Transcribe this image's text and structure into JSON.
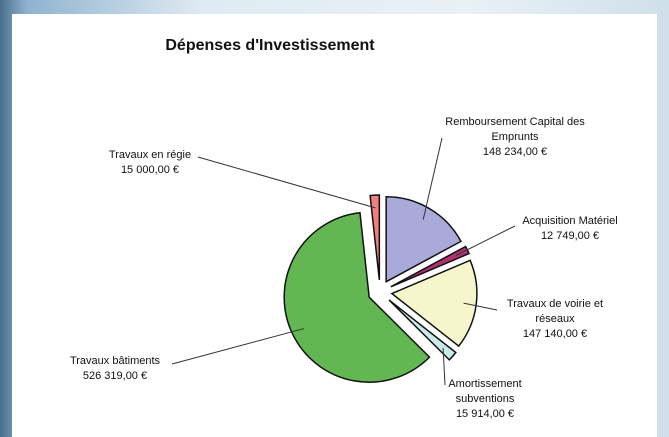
{
  "chart_data": {
    "type": "pie",
    "title": "Dépenses d'Investissement",
    "categories": [
      "Remboursement Capital des Emprunts",
      "Acquisition Matériel",
      "Travaux de voirie et réseaux",
      "Amortissement subventions",
      "Travaux bâtiments",
      "Travaux en régie"
    ],
    "values": [
      148234,
      12749,
      147140,
      15914,
      526319,
      15000
    ],
    "value_labels": [
      "148 234,00 €",
      "12 749,00 €",
      "147 140,00 €",
      "15 914,00 €",
      "526 319,00 €",
      "15 000,00 €"
    ],
    "colors": [
      "#a9a9da",
      "#b2306e",
      "#f6f6cc",
      "#c9e9ea",
      "#63b753",
      "#ee8080"
    ]
  }
}
